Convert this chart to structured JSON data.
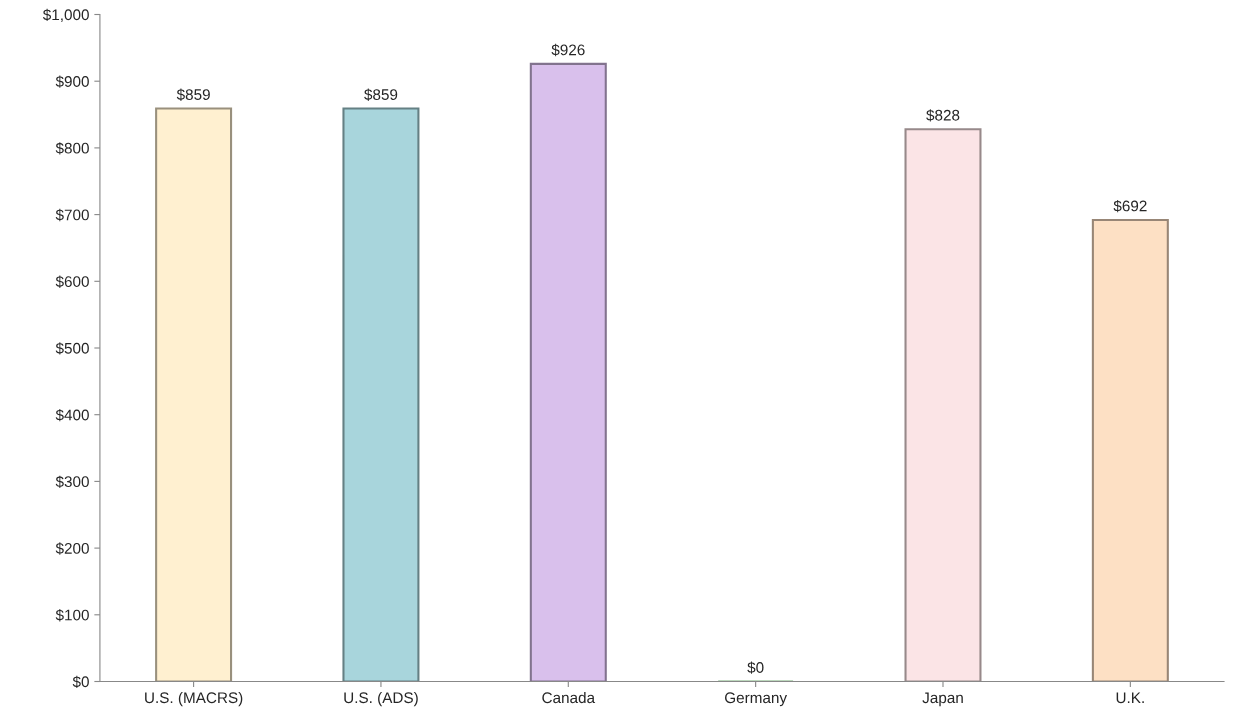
{
  "chart_data": {
    "type": "bar",
    "categories": [
      "U.S. (MACRS)",
      "U.S. (ADS)",
      "Canada",
      "Germany",
      "Japan",
      "U.K."
    ],
    "values": [
      859,
      859,
      926,
      0,
      828,
      692
    ],
    "value_labels": [
      "$859",
      "$859",
      "$926",
      "$0",
      "$828",
      "$692"
    ],
    "colors": [
      "#fff0d0",
      "#a8d5dc",
      "#d9c0ec",
      "#7ab07a",
      "#fbe4e6",
      "#fde0c4"
    ],
    "ylim": [
      0,
      1000
    ],
    "yticks": [
      {
        "value": 0,
        "label": "$0"
      },
      {
        "value": 100,
        "label": "$100"
      },
      {
        "value": 200,
        "label": "$200"
      },
      {
        "value": 300,
        "label": "$300"
      },
      {
        "value": 400,
        "label": "$400"
      },
      {
        "value": 500,
        "label": "$500"
      },
      {
        "value": 600,
        "label": "$600"
      },
      {
        "value": 700,
        "label": "$700"
      },
      {
        "value": 800,
        "label": "$800"
      },
      {
        "value": 900,
        "label": "$900"
      },
      {
        "value": 1000,
        "label": "$1,000"
      }
    ],
    "grid": false
  }
}
